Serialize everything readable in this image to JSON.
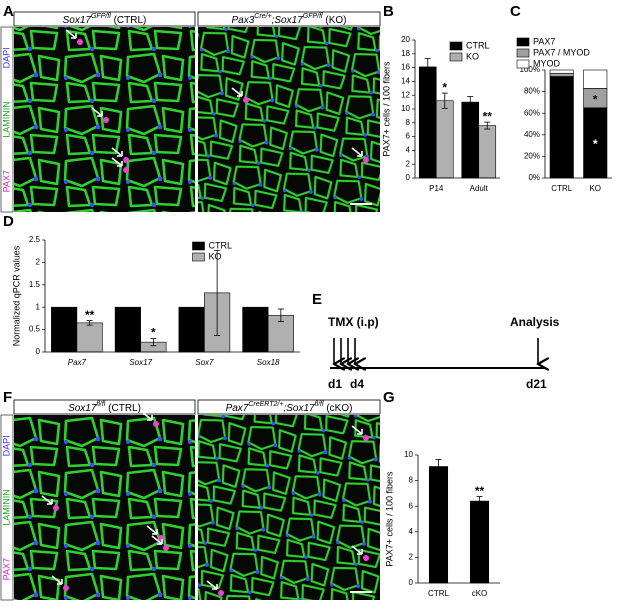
{
  "panel_labels": [
    "A",
    "B",
    "C",
    "D",
    "E",
    "F",
    "G"
  ],
  "image_panels": [
    {
      "headers": [
        [
          {
            "text": "Sox17",
            "style": "italic"
          },
          {
            "text": "GFP/fl",
            "style": "sup"
          },
          {
            "text": " (CTRL)",
            "style": "normal"
          }
        ],
        [
          {
            "text": "Pax3",
            "style": "italic"
          },
          {
            "text": "Cre/+",
            "style": "sup"
          },
          {
            "text": ";Sox17",
            "style": "italic"
          },
          {
            "text": "GFP/fl",
            "style": "sup"
          },
          {
            "text": " (KO)",
            "style": "normal"
          }
        ]
      ],
      "channels": [
        {
          "name": "DAPI",
          "color": "#3b3bff"
        },
        {
          "name": "LAMININ",
          "color": "#22aa22"
        },
        {
          "name": "PAX7",
          "color": "#e020c0"
        }
      ]
    },
    {
      "headers": [
        [
          {
            "text": "Sox17",
            "style": "italic"
          },
          {
            "text": "fl/fl",
            "style": "sup"
          },
          {
            "text": " (CTRL)",
            "style": "normal"
          }
        ],
        [
          {
            "text": "Pax7",
            "style": "italic"
          },
          {
            "text": "CreERT2/+",
            "style": "sup"
          },
          {
            "text": ";Sox17",
            "style": "italic"
          },
          {
            "text": "fl/fl",
            "style": "sup"
          },
          {
            "text": " (cKO)",
            "style": "normal"
          }
        ]
      ],
      "channels": [
        {
          "name": "DAPI",
          "color": "#3b3bff"
        },
        {
          "name": "LAMININ",
          "color": "#22aa22"
        },
        {
          "name": "PAX7",
          "color": "#e020c0"
        }
      ]
    }
  ],
  "timeline": {
    "treatment": "TMX (i.p)",
    "endpoint": "Analysis",
    "days": [
      "d1",
      "d4",
      "d21"
    ]
  },
  "chart_data": [
    {
      "type": "bar",
      "ylabel": "PAX7+ cells / 100 fibers",
      "categories": [
        "P14",
        "Adult"
      ],
      "series": [
        {
          "name": "CTRL",
          "color": "#000000",
          "values": [
            16.1,
            11.0
          ],
          "errors": [
            1.2,
            0.8
          ]
        },
        {
          "name": "KO",
          "color": "#b0b0b0",
          "values": [
            11.2,
            7.6
          ],
          "errors": [
            1.1,
            0.5
          ],
          "annotations": [
            "*",
            "**"
          ]
        }
      ],
      "ylim": [
        0,
        20
      ],
      "yticks": [
        0,
        2,
        4,
        6,
        8,
        10,
        12,
        14,
        16,
        18,
        20
      ],
      "legend": "top-right",
      "grid": false
    },
    {
      "type": "bar",
      "stacked": true,
      "categories": [
        "CTRL",
        "KO"
      ],
      "series": [
        {
          "name": "PAX7",
          "color": "#000000",
          "values": [
            94,
            65
          ],
          "annotations": [
            null,
            "*"
          ]
        },
        {
          "name": "PAX7 / MYOD",
          "color": "#a0a0a0",
          "values": [
            3,
            18
          ],
          "annotations": [
            null,
            "*"
          ]
        },
        {
          "name": "MYOD",
          "color": "#ffffff",
          "values": [
            3,
            17
          ]
        }
      ],
      "ylim": [
        0,
        100
      ],
      "yticks": [
        {
          "value": 0,
          "label": "0%"
        },
        {
          "value": 20,
          "label": "20%"
        },
        {
          "value": 40,
          "label": "40%"
        },
        {
          "value": 60,
          "label": "60%"
        },
        {
          "value": 80,
          "label": "80%"
        },
        {
          "value": 100,
          "label": "100%"
        }
      ],
      "legend": "above",
      "grid": false
    },
    {
      "type": "bar",
      "ylabel": "Normalized qPCR values",
      "categories": [
        "Pax7",
        "Sox17",
        "Sox7",
        "Sox18"
      ],
      "category_style": "italic",
      "series": [
        {
          "name": "CTRL",
          "color": "#000000",
          "values": [
            1,
            1,
            1,
            1
          ]
        },
        {
          "name": "KO",
          "color": "#b0b0b0",
          "values": [
            0.65,
            0.22,
            1.32,
            0.82
          ],
          "errors": [
            0.05,
            0.08,
            0.95,
            0.14
          ],
          "annotations": [
            "**",
            "*",
            null,
            null
          ]
        }
      ],
      "ylim": [
        0,
        2.5
      ],
      "yticks": [
        0,
        0.5,
        1,
        1.5,
        2,
        2.5
      ],
      "legend": "top-center",
      "grid": false
    },
    {
      "type": "bar",
      "ylabel": "PAX7+ cells / 100 fibers",
      "categories": [
        "CTRL",
        "cKO"
      ],
      "series": [
        {
          "color": "#000000",
          "values": [
            9.1,
            6.4
          ],
          "errors": [
            0.55,
            0.35
          ],
          "annotations": [
            null,
            "**"
          ]
        }
      ],
      "ylim": [
        0,
        10
      ],
      "yticks": [
        0,
        2,
        4,
        6,
        8,
        10
      ],
      "grid": false
    }
  ]
}
